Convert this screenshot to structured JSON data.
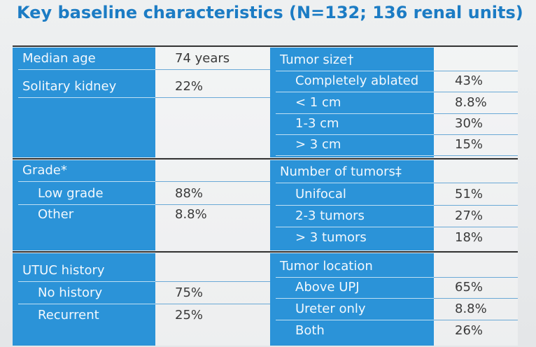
{
  "title": "Key baseline characteristics (N=132; 136 renal units)",
  "left_table": {
    "sections": [
      {
        "rows": [
          {
            "label": "Median age",
            "value": "74 years"
          },
          {
            "label": "Solitary kidney",
            "value": "22%"
          }
        ]
      },
      {
        "rows": [
          {
            "label": "Grade*"
          },
          {
            "label": "Low grade",
            "value": "88%"
          },
          {
            "label": "Other",
            "value": "8.8%"
          }
        ]
      },
      {
        "rows": [
          {
            "label": "UTUC history"
          },
          {
            "label": "No history",
            "value": "75%"
          },
          {
            "label": "Recurrent",
            "value": "25%"
          }
        ]
      }
    ]
  },
  "right_table": {
    "sections": [
      {
        "rows": [
          {
            "label": "Tumor size†"
          },
          {
            "label": "Completely ablated",
            "value": "43%"
          },
          {
            "label": "< 1 cm",
            "value": "8.8%"
          },
          {
            "label": "1-3 cm",
            "value": "30%"
          },
          {
            "label": "> 3 cm",
            "value": "15%"
          }
        ]
      },
      {
        "rows": [
          {
            "label": "Number of tumors‡"
          },
          {
            "label": "Unifocal",
            "value": "51%"
          },
          {
            "label": "2-3 tumors",
            "value": "27%"
          },
          {
            "label": "> 3 tumors",
            "value": "18%"
          }
        ]
      },
      {
        "rows": [
          {
            "label": "Tumor location"
          },
          {
            "label": "Above UPJ",
            "value": "65%"
          },
          {
            "label": "Ureter only",
            "value": "8.8%"
          },
          {
            "label": "Both",
            "value": "26%"
          }
        ]
      }
    ]
  }
}
